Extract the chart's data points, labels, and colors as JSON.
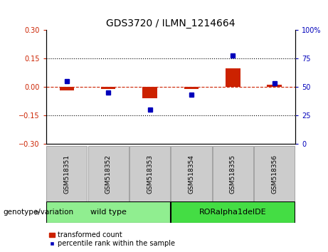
{
  "title": "GDS3720 / ILMN_1214664",
  "samples": [
    "GSM518351",
    "GSM518352",
    "GSM518353",
    "GSM518354",
    "GSM518355",
    "GSM518356"
  ],
  "red_values": [
    -0.02,
    -0.01,
    -0.06,
    -0.01,
    0.1,
    0.01
  ],
  "blue_values_pct": [
    55,
    45,
    30,
    43,
    78,
    53
  ],
  "ylim_left": [
    -0.3,
    0.3
  ],
  "ylim_right": [
    0,
    100
  ],
  "yticks_left": [
    -0.3,
    -0.15,
    0,
    0.15,
    0.3
  ],
  "yticks_right": [
    0,
    25,
    50,
    75,
    100
  ],
  "hlines": [
    0.15,
    -0.15
  ],
  "groups": [
    {
      "label": "wild type",
      "samples": [
        0,
        1,
        2
      ],
      "color": "#90EE90"
    },
    {
      "label": "RORalpha1delDE",
      "samples": [
        3,
        4,
        5
      ],
      "color": "#44DD44"
    }
  ],
  "genotype_label": "genotype/variation",
  "legend_red": "transformed count",
  "legend_blue": "percentile rank within the sample",
  "bar_width": 0.35,
  "blue_marker_size": 5,
  "left_color": "#CC2200",
  "right_color": "#0000BB",
  "background_color": "#FFFFFF",
  "title_fontsize": 10,
  "tick_fontsize": 7,
  "sample_fontsize": 6.5,
  "group_fontsize": 8,
  "legend_fontsize": 7,
  "genotype_fontsize": 7.5
}
